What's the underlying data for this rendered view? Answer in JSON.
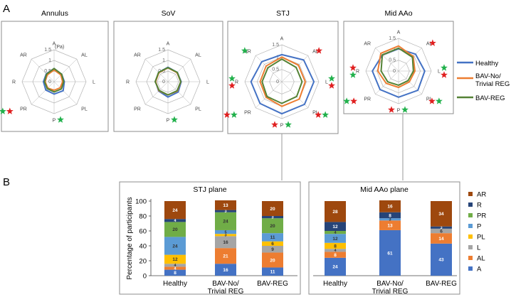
{
  "panel_labels": {
    "a": "A",
    "b": "B"
  },
  "colors": {
    "healthy": "#4472c4",
    "bav_no": "#ed7d31",
    "bav_reg": "#548235",
    "star_red": "#e02020",
    "star_green": "#22b14c",
    "grid": "#b4b4b4",
    "frame": "#8c8c8c",
    "seg_A": "#4472c4",
    "seg_AL": "#ed7d31",
    "seg_L": "#a5a5a5",
    "seg_PL": "#ffc000",
    "seg_P": "#5b9bd5",
    "seg_PR": "#70ad47",
    "seg_R": "#264478",
    "seg_AR": "#9e480e"
  },
  "radar_legend": [
    "Healthy",
    "BAV-No/\nTrivial REG",
    "BAV-REG"
  ],
  "stack_legend": [
    "AR",
    "R",
    "PR",
    "P",
    "PL",
    "L",
    "AL",
    "A"
  ],
  "chart_data": [
    {
      "type": "radar",
      "title": "Annulus",
      "unit_label": "(Pa)",
      "axes": [
        "A",
        "AL",
        "L",
        "PL",
        "P",
        "PR",
        "R",
        "AR"
      ],
      "rticks": [
        "0",
        "0.5",
        "1",
        "1.5"
      ],
      "rmax": 1.5,
      "series": [
        {
          "name": "Healthy",
          "values": [
            0.62,
            0.5,
            0.48,
            0.6,
            0.58,
            0.55,
            0.5,
            0.52
          ]
        },
        {
          "name": "BAV-No/Trivial REG",
          "values": [
            0.55,
            0.45,
            0.4,
            0.4,
            0.4,
            0.42,
            0.42,
            0.45
          ]
        },
        {
          "name": "BAV-REG",
          "values": [
            0.62,
            0.5,
            0.45,
            0.48,
            0.48,
            0.45,
            0.45,
            0.5
          ]
        }
      ],
      "stars": [
        {
          "axis": "PR",
          "colors": [
            "red",
            "green"
          ]
        },
        {
          "axis": "P",
          "colors": [
            "green"
          ]
        }
      ]
    },
    {
      "type": "radar",
      "title": "SoV",
      "axes": [
        "A",
        "AL",
        "L",
        "PL",
        "P",
        "PR",
        "R",
        "AR"
      ],
      "rticks": [
        "0",
        "0.5",
        "1",
        "1.5"
      ],
      "rmax": 1.5,
      "series": [
        {
          "name": "Healthy",
          "values": [
            0.68,
            0.62,
            0.62,
            0.68,
            0.72,
            0.62,
            0.58,
            0.62
          ]
        },
        {
          "name": "BAV-No/Trivial REG",
          "values": [
            0.65,
            0.6,
            0.6,
            0.62,
            0.62,
            0.6,
            0.58,
            0.6
          ]
        },
        {
          "name": "BAV-REG",
          "values": [
            0.66,
            0.62,
            0.6,
            0.6,
            0.62,
            0.58,
            0.6,
            0.62
          ]
        }
      ],
      "stars": [
        {
          "axis": "P",
          "colors": [
            "green"
          ]
        }
      ]
    },
    {
      "type": "radar",
      "title": "STJ",
      "axes": [
        "A",
        "AL",
        "L",
        "PL",
        "P",
        "PR",
        "R",
        "AR"
      ],
      "rticks": [
        "0",
        "0.5",
        "1",
        "1.5"
      ],
      "rmax": 1.5,
      "series": [
        {
          "name": "Healthy",
          "values": [
            1.1,
            1.25,
            1.3,
            1.3,
            1.3,
            1.25,
            1.25,
            1.15
          ]
        },
        {
          "name": "BAV-No/Trivial REG",
          "values": [
            1.0,
            0.95,
            0.95,
            1.0,
            1.0,
            0.9,
            0.88,
            0.9
          ]
        },
        {
          "name": "BAV-REG",
          "values": [
            0.92,
            0.82,
            0.82,
            0.85,
            0.88,
            0.85,
            0.8,
            0.8
          ]
        }
      ],
      "stars": [
        {
          "axis": "AR",
          "colors": [
            "green"
          ]
        },
        {
          "axis": "AL",
          "colors": [
            "red"
          ]
        },
        {
          "axis": "L",
          "colors": [
            "green",
            "red"
          ]
        },
        {
          "axis": "PL",
          "colors": [
            "red",
            "green"
          ]
        },
        {
          "axis": "P",
          "colors": [
            "red",
            "green"
          ]
        },
        {
          "axis": "PR",
          "colors": [
            "green",
            "red"
          ]
        },
        {
          "axis": "R",
          "colors": [
            "green",
            "red"
          ]
        }
      ]
    },
    {
      "type": "radar",
      "title": "Mid AAo",
      "axes": [
        "A",
        "AL",
        "L",
        "PL",
        "P",
        "PR",
        "R",
        "AR"
      ],
      "rticks": [
        "0",
        "0.5",
        "1",
        "1.5"
      ],
      "rmax": 1.5,
      "series": [
        {
          "name": "Healthy",
          "values": [
            1.02,
            1.1,
            1.2,
            1.25,
            1.2,
            1.2,
            1.2,
            1.05
          ]
        },
        {
          "name": "BAV-No/Trivial REG",
          "values": [
            1.15,
            0.95,
            0.75,
            0.7,
            0.75,
            0.8,
            0.95,
            1.15
          ]
        },
        {
          "name": "BAV-REG",
          "values": [
            1.05,
            0.9,
            0.68,
            0.62,
            0.65,
            0.7,
            0.8,
            1.05
          ]
        }
      ],
      "stars": [
        {
          "axis": "AL",
          "colors": [
            "red"
          ]
        },
        {
          "axis": "L",
          "colors": [
            "green",
            "red"
          ]
        },
        {
          "axis": "PL",
          "colors": [
            "red",
            "green"
          ]
        },
        {
          "axis": "P",
          "colors": [
            "red",
            "green"
          ]
        },
        {
          "axis": "PR",
          "colors": [
            "red",
            "green"
          ]
        },
        {
          "axis": "R",
          "colors": [
            "red",
            "green"
          ]
        }
      ]
    },
    {
      "type": "bar",
      "stacked": true,
      "title": "STJ plane",
      "ylabel": "Percentage of participants",
      "ylim": [
        0,
        100
      ],
      "yticks": [
        "0",
        "20",
        "40",
        "60",
        "80",
        "100"
      ],
      "categories": [
        "Healthy",
        "BAV-No/\nTrivial REG",
        "BAV-REG"
      ],
      "series": [
        {
          "name": "A",
          "values": [
            8,
            16,
            11
          ]
        },
        {
          "name": "AL",
          "values": [
            4,
            21,
            20
          ]
        },
        {
          "name": "L",
          "values": [
            4,
            16,
            9
          ]
        },
        {
          "name": "PL",
          "values": [
            12,
            3,
            6
          ]
        },
        {
          "name": "P",
          "values": [
            24,
            5,
            11
          ]
        },
        {
          "name": "PR",
          "values": [
            20,
            24,
            20
          ]
        },
        {
          "name": "R",
          "values": [
            4,
            3,
            3
          ]
        },
        {
          "name": "AR",
          "values": [
            24,
            13,
            20
          ]
        }
      ],
      "labels": [
        [
          "8",
          "4",
          "4",
          "12",
          "24",
          "20",
          "4",
          "24"
        ],
        [
          "16",
          "21",
          "16",
          "3",
          "5",
          "24",
          "3",
          "13"
        ],
        [
          "11",
          "20",
          "9",
          "6",
          "11",
          "20",
          "3",
          "20"
        ]
      ]
    },
    {
      "type": "bar",
      "stacked": true,
      "title": "Mid AAo plane",
      "ylim": [
        0,
        100
      ],
      "categories": [
        "Healthy",
        "BAV-No/\nTrivial REG",
        "BAV-REG"
      ],
      "series": [
        {
          "name": "A",
          "values": [
            24,
            61,
            43
          ]
        },
        {
          "name": "AL",
          "values": [
            8,
            13,
            14
          ]
        },
        {
          "name": "L",
          "values": [
            4,
            0,
            6
          ]
        },
        {
          "name": "PL",
          "values": [
            8,
            0,
            0
          ]
        },
        {
          "name": "P",
          "values": [
            12,
            3,
            0
          ]
        },
        {
          "name": "PR",
          "values": [
            4,
            0,
            0
          ]
        },
        {
          "name": "R",
          "values": [
            12,
            8,
            3
          ]
        },
        {
          "name": "AR",
          "values": [
            28,
            16,
            34
          ]
        }
      ],
      "labels": [
        [
          "24",
          "8",
          "4",
          "8",
          "12",
          "4",
          "12",
          "28"
        ],
        [
          "61",
          "13",
          "",
          "",
          "3",
          "",
          "8",
          "16"
        ],
        [
          "43",
          "14",
          "6",
          "",
          "",
          "",
          "3",
          "34"
        ]
      ]
    }
  ]
}
